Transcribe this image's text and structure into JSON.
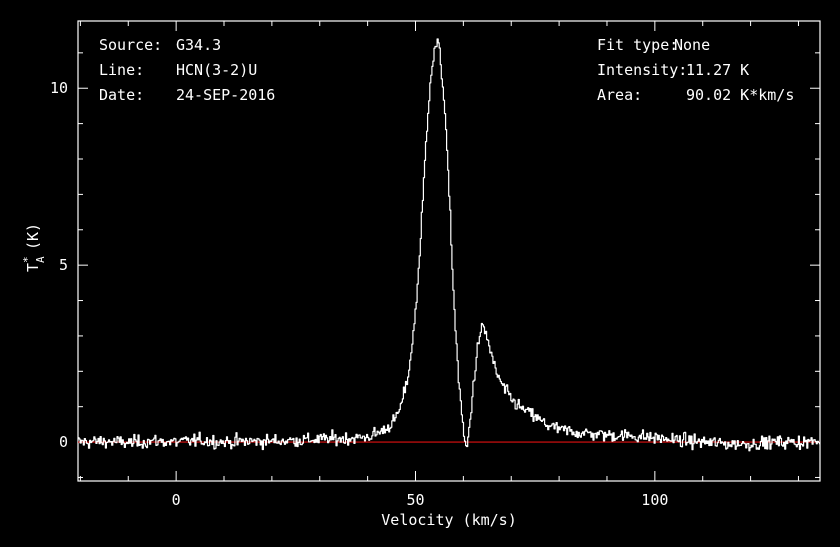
{
  "chart_data": {
    "type": "line",
    "info": {
      "source_label": "Source:",
      "source_value": "G34.3",
      "line_label": "Line:",
      "line_value": "HCN(3-2)U",
      "date_label": "Date:",
      "date_value": "24-SEP-2016",
      "fit_label": "Fit type:",
      "fit_value": "None",
      "intensity_label": "Intensity:",
      "intensity_value": "11.27 K",
      "area_label": "Area:",
      "area_value": "90.02 K*km/s"
    },
    "xlabel": "Velocity (km/s)",
    "ylabel_main": "T",
    "ylabel_sup": "*",
    "ylabel_sub": "A",
    "ylabel_unit": "(K)",
    "xlim": [
      -20.5,
      134.5
    ],
    "ylim": [
      -1.1,
      11.9
    ],
    "xticks": [
      0,
      50,
      100
    ],
    "xtick_labels": [
      "0",
      "50",
      "100"
    ],
    "yticks": [
      0,
      5,
      10
    ],
    "ytick_labels": [
      "0",
      "5",
      "10"
    ],
    "baseline": 0,
    "series": [
      {
        "color": "#ffffff",
        "x": [
          -20,
          -15,
          -10,
          -5,
          0,
          5,
          10,
          15,
          20,
          25,
          30,
          35,
          38,
          40,
          42,
          44,
          46,
          47,
          48,
          49,
          50,
          51,
          52,
          53,
          54,
          54.5,
          55,
          56,
          57,
          58,
          59,
          60,
          60.5,
          61,
          62,
          63,
          64,
          65,
          66,
          67,
          68,
          70,
          72,
          74,
          76,
          78,
          80,
          85,
          90,
          95,
          100,
          105,
          110,
          115,
          120,
          125,
          130,
          134
        ],
        "y": [
          0.0,
          0.02,
          -0.02,
          0.03,
          0.0,
          0.05,
          0.0,
          0.02,
          0.03,
          0.05,
          0.08,
          0.1,
          0.12,
          0.15,
          0.25,
          0.4,
          0.7,
          1.1,
          1.6,
          2.5,
          3.8,
          5.8,
          8.2,
          10.3,
          11.15,
          11.27,
          11.0,
          9.5,
          6.8,
          3.8,
          1.6,
          0.2,
          -0.25,
          0.2,
          1.6,
          2.8,
          3.3,
          2.9,
          2.3,
          1.9,
          1.6,
          1.2,
          0.95,
          0.8,
          0.6,
          0.45,
          0.35,
          0.25,
          0.2,
          0.18,
          0.12,
          0.05,
          0.0,
          -0.05,
          -0.05,
          0.0,
          0.0,
          0.0
        ]
      }
    ]
  }
}
